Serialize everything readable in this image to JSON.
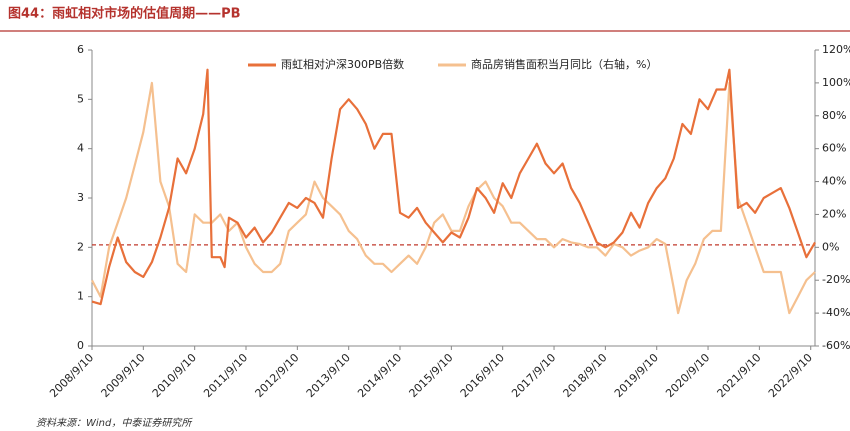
{
  "chart_data": {
    "type": "line",
    "title": "图44：雨虹相对市场的估值周期——PB",
    "source": "资料来源：Wind，中泰证券研究所",
    "xlim": [
      "2008/9/10",
      "2022/10/10"
    ],
    "xticks": [
      "2008/9/10",
      "2009/9/10",
      "2010/9/10",
      "2011/9/10",
      "2012/9/10",
      "2013/9/10",
      "2014/9/10",
      "2015/9/10",
      "2016/9/10",
      "2017/9/10",
      "2018/9/10",
      "2019/9/10",
      "2020/9/10",
      "2021/9/10",
      "2022/9/10"
    ],
    "ylim": [
      0,
      6
    ],
    "yticks": [
      0,
      1,
      2,
      3,
      4,
      5,
      6
    ],
    "y2lim": [
      -60,
      120
    ],
    "y2ticks": [
      {
        "value": -60,
        "label": "-60%"
      },
      {
        "value": -40,
        "label": "-40%"
      },
      {
        "value": -20,
        "label": "-20%"
      },
      {
        "value": 0,
        "label": "0%"
      },
      {
        "value": 20,
        "label": "20%"
      },
      {
        "value": 40,
        "label": "40%"
      },
      {
        "value": 60,
        "label": "60%"
      },
      {
        "value": 80,
        "label": "80%"
      },
      {
        "value": 100,
        "label": "100%"
      },
      {
        "value": 120,
        "label": "120%"
      }
    ],
    "hline": 2.05,
    "hline_color": "#c0392b",
    "legend": "top",
    "series": [
      {
        "name": "雨虹相对沪深300PB倍数",
        "color": "#e8703a",
        "x": [
          "2008/9/10",
          "2008/11/10",
          "2009/1/10",
          "2009/3/10",
          "2009/5/10",
          "2009/7/10",
          "2009/9/10",
          "2009/11/10",
          "2010/1/10",
          "2010/3/10",
          "2010/5/10",
          "2010/7/10",
          "2010/9/10",
          "2010/11/10",
          "2010/12/10",
          "2011/1/10",
          "2011/3/10",
          "2011/4/10",
          "2011/5/10",
          "2011/7/10",
          "2011/9/10",
          "2011/11/10",
          "2012/1/10",
          "2012/3/10",
          "2012/5/10",
          "2012/7/10",
          "2012/9/10",
          "2012/11/10",
          "2013/1/10",
          "2013/3/10",
          "2013/5/10",
          "2013/7/10",
          "2013/9/10",
          "2013/11/10",
          "2014/1/10",
          "2014/3/10",
          "2014/5/10",
          "2014/7/10",
          "2014/9/10",
          "2014/11/10",
          "2015/1/10",
          "2015/3/10",
          "2015/5/10",
          "2015/7/10",
          "2015/9/10",
          "2015/11/10",
          "2016/1/10",
          "2016/3/10",
          "2016/5/10",
          "2016/7/10",
          "2016/9/10",
          "2016/11/10",
          "2017/1/10",
          "2017/3/10",
          "2017/5/10",
          "2017/7/10",
          "2017/9/10",
          "2017/11/10",
          "2018/1/10",
          "2018/3/10",
          "2018/5/10",
          "2018/7/10",
          "2018/9/10",
          "2018/11/10",
          "2019/1/10",
          "2019/3/10",
          "2019/5/10",
          "2019/7/10",
          "2019/9/10",
          "2019/11/10",
          "2020/1/10",
          "2020/3/10",
          "2020/5/10",
          "2020/7/10",
          "2020/9/10",
          "2020/11/10",
          "2021/1/10",
          "2021/2/10",
          "2021/4/10",
          "2021/6/10",
          "2021/8/10",
          "2021/10/10",
          "2021/12/10",
          "2022/2/10",
          "2022/4/10",
          "2022/6/10",
          "2022/8/10",
          "2022/10/10"
        ],
        "values": [
          0.9,
          0.85,
          1.6,
          2.2,
          1.7,
          1.5,
          1.4,
          1.7,
          2.2,
          2.8,
          3.8,
          3.5,
          4.0,
          4.7,
          5.6,
          1.8,
          1.8,
          1.6,
          2.6,
          2.5,
          2.2,
          2.4,
          2.1,
          2.3,
          2.6,
          2.9,
          2.8,
          3.0,
          2.9,
          2.6,
          3.8,
          4.8,
          5.0,
          4.8,
          4.5,
          4.0,
          4.3,
          4.3,
          2.7,
          2.6,
          2.8,
          2.5,
          2.3,
          2.1,
          2.3,
          2.2,
          2.6,
          3.2,
          3.0,
          2.7,
          3.3,
          3.0,
          3.5,
          3.8,
          4.1,
          3.7,
          3.5,
          3.7,
          3.2,
          2.9,
          2.5,
          2.1,
          2.0,
          2.1,
          2.3,
          2.7,
          2.4,
          2.9,
          3.2,
          3.4,
          3.8,
          4.5,
          4.3,
          5.0,
          4.8,
          5.2,
          5.2,
          5.6,
          2.8,
          2.9,
          2.7,
          3.0,
          3.1,
          3.2,
          2.8,
          2.3,
          1.8,
          2.1
        ]
      },
      {
        "name": "商品房销售面积当月同比（右轴，%）",
        "color": "#f5c08f",
        "axis": "y2",
        "x": [
          "2008/9/10",
          "2008/11/10",
          "2009/1/10",
          "2009/3/10",
          "2009/5/10",
          "2009/7/10",
          "2009/9/10",
          "2009/11/10",
          "2010/1/10",
          "2010/3/10",
          "2010/5/10",
          "2010/7/10",
          "2010/9/10",
          "2010/11/10",
          "2011/1/10",
          "2011/3/10",
          "2011/5/10",
          "2011/7/10",
          "2011/9/10",
          "2011/11/10",
          "2012/1/10",
          "2012/3/10",
          "2012/5/10",
          "2012/7/10",
          "2012/9/10",
          "2012/11/10",
          "2013/1/10",
          "2013/3/10",
          "2013/5/10",
          "2013/7/10",
          "2013/9/10",
          "2013/11/10",
          "2014/1/10",
          "2014/3/10",
          "2014/5/10",
          "2014/7/10",
          "2014/9/10",
          "2014/11/10",
          "2015/1/10",
          "2015/3/10",
          "2015/5/10",
          "2015/7/10",
          "2015/9/10",
          "2015/11/10",
          "2016/1/10",
          "2016/3/10",
          "2016/5/10",
          "2016/7/10",
          "2016/9/10",
          "2016/11/10",
          "2017/1/10",
          "2017/3/10",
          "2017/5/10",
          "2017/7/10",
          "2017/9/10",
          "2017/11/10",
          "2018/1/10",
          "2018/3/10",
          "2018/5/10",
          "2018/7/10",
          "2018/9/10",
          "2018/11/10",
          "2019/1/10",
          "2019/3/10",
          "2019/5/10",
          "2019/7/10",
          "2019/9/10",
          "2019/11/10",
          "2020/1/10",
          "2020/2/10",
          "2020/4/10",
          "2020/6/10",
          "2020/8/10",
          "2020/10/10",
          "2020/12/10",
          "2021/2/10",
          "2021/4/10",
          "2021/6/10",
          "2021/8/10",
          "2021/10/10",
          "2021/12/10",
          "2022/2/10",
          "2022/4/10",
          "2022/6/10",
          "2022/8/10",
          "2022/10/10"
        ],
        "values": [
          -20,
          -30,
          0,
          15,
          30,
          50,
          70,
          100,
          40,
          25,
          -10,
          -15,
          20,
          15,
          15,
          20,
          10,
          15,
          0,
          -10,
          -15,
          -15,
          -10,
          10,
          15,
          20,
          40,
          30,
          25,
          20,
          10,
          5,
          -5,
          -10,
          -10,
          -15,
          -10,
          -5,
          -10,
          0,
          15,
          20,
          10,
          10,
          25,
          35,
          40,
          30,
          25,
          15,
          15,
          10,
          5,
          5,
          0,
          5,
          3,
          2,
          0,
          0,
          -5,
          2,
          0,
          -5,
          -2,
          0,
          5,
          2,
          -25,
          -40,
          -20,
          -10,
          5,
          10,
          10,
          100,
          30,
          15,
          0,
          -15,
          -15,
          -15,
          -40,
          -30,
          -20,
          -15
        ]
      }
    ]
  }
}
